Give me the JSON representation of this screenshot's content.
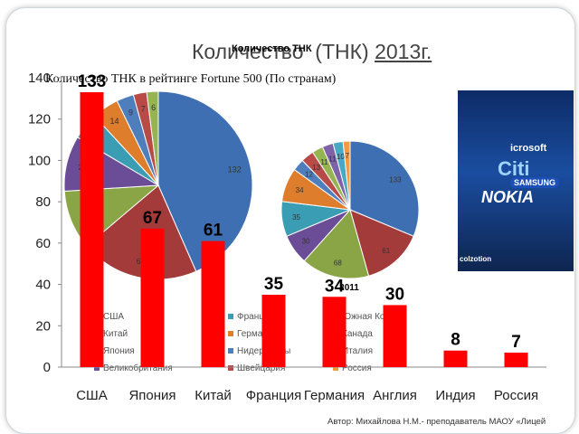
{
  "slide": {
    "bg_title_part1": "Количество",
    "bg_title_part2": "(ТНК)",
    "bg_title_year": "2013г.",
    "overlay_label": "Количество ТНК",
    "subtitle": "Количество ТНК в рейтинге Fortune 500 (По странам)",
    "year_2011": "2011",
    "footer": "Автор: Михайлова Н.М.- преподаватель МАОУ «Лицей"
  },
  "photo": {
    "brands": [
      "icrosoft",
      "Citi",
      "SAMSUNG",
      "NOKIA",
      "colzotion"
    ]
  },
  "legend": {
    "items": [
      {
        "label": "США",
        "color": "#3f6fb3"
      },
      {
        "label": "Китай",
        "color": "#a33b3b"
      },
      {
        "label": "Япония",
        "color": "#8aa545"
      },
      {
        "label": "Великобритания",
        "color": "#6b4c96"
      },
      {
        "label": "Франция",
        "color": "#3a9db3"
      },
      {
        "label": "Германия",
        "color": "#de7d2c"
      },
      {
        "label": "Нидерланды",
        "color": "#4f7ebd"
      },
      {
        "label": "Швейцария",
        "color": "#b84a48"
      },
      {
        "label": "Южная Корея",
        "color": "#96b552"
      },
      {
        "label": "Канада",
        "color": "#7f62a8"
      },
      {
        "label": "Италия",
        "color": "#46aac5"
      },
      {
        "label": "Россия",
        "color": "#f59a3c"
      }
    ]
  },
  "chart_data": [
    {
      "type": "bar",
      "categories": [
        "США",
        "Япония",
        "Китай",
        "Франция",
        "Германия",
        "Англия",
        "Индия",
        "Россия"
      ],
      "values": [
        133,
        67,
        61,
        35,
        34,
        30,
        8,
        7
      ],
      "value_labels": [
        "133",
        "67",
        "61",
        "35",
        "34",
        "30",
        "8",
        "7"
      ],
      "ylim": [
        0,
        140
      ],
      "yticks": [
        0,
        20,
        40,
        60,
        80,
        100,
        120,
        140
      ],
      "bar_color": "#ff0000"
    },
    {
      "type": "pie",
      "values": [
        132,
        62,
        31,
        29,
        14,
        14,
        9,
        7,
        6
      ],
      "labels": [
        "132",
        "62",
        "31",
        "29",
        "14",
        "14",
        "9",
        "7",
        "6"
      ]
    },
    {
      "type": "pie",
      "title": "2011",
      "values": [
        133,
        61,
        68,
        30,
        35,
        34,
        12,
        13,
        11,
        11,
        10,
        7
      ],
      "labels": [
        "133",
        "61",
        "68",
        "30",
        "35",
        "34",
        "12",
        "13",
        "11",
        "11",
        "10",
        "7"
      ]
    }
  ]
}
